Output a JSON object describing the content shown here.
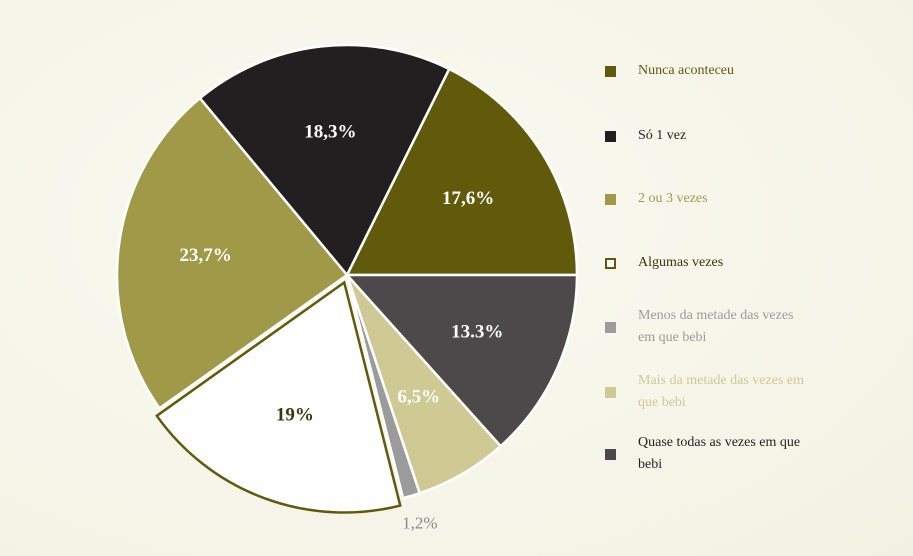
{
  "chart_data": {
    "type": "pie",
    "categories": [
      "Nunca aconteceu",
      "Só 1 vez",
      "2 ou 3 vezes",
      "Algumas vezes",
      "Menos da metade das vezes em que bebi",
      "Mais da metade das vezes em que bebi",
      "Quase todas as vezes em que bebi"
    ],
    "values": [
      17.6,
      18.3,
      23.7,
      19,
      1.2,
      6.5,
      13.3
    ],
    "value_labels": [
      "17,6%",
      "18,3%",
      "23,7%",
      "19%",
      "1,2%",
      "6,5%",
      "13.3%"
    ],
    "colors": [
      "#625a0b",
      "#231f20",
      "#a09a48",
      "#ffffff",
      "#9b9b9b",
      "#cfca94",
      "#4d494b"
    ],
    "legend": "right"
  }
}
